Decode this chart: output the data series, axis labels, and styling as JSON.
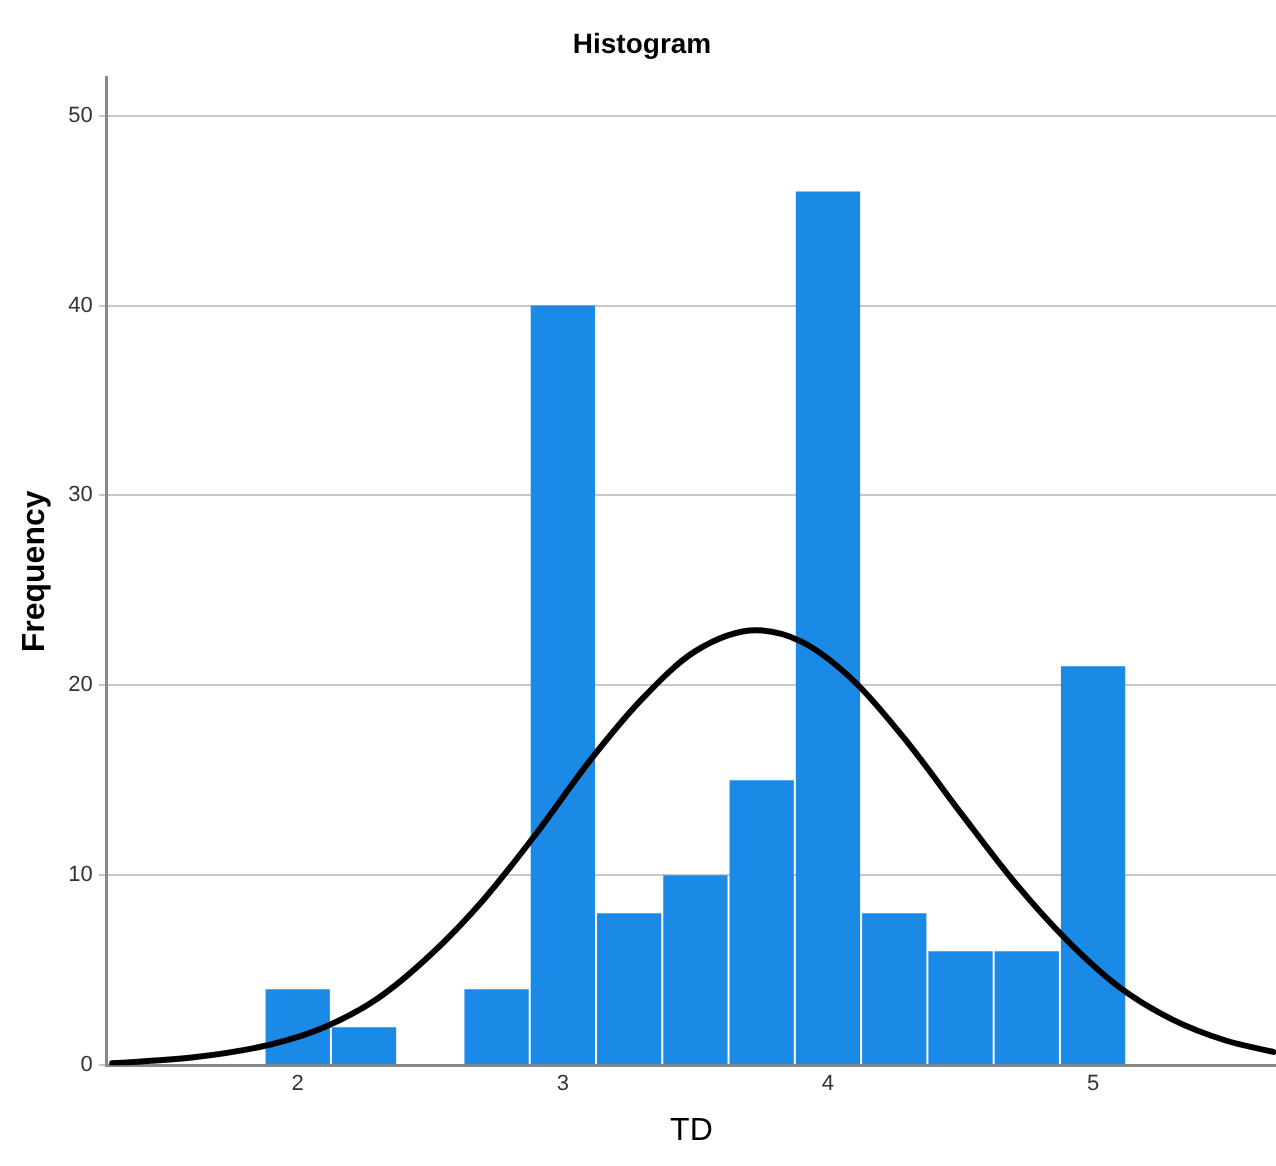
{
  "chart_data": {
    "type": "histogram",
    "title": "Histogram",
    "xlabel": "TD",
    "ylabel": "Frequency",
    "bins": [
      1.875,
      2.125,
      2.375,
      2.625,
      2.875,
      3.125,
      3.375,
      3.625,
      3.875,
      4.125,
      4.375,
      4.625,
      4.875,
      5.125
    ],
    "values": [
      4,
      2,
      0,
      4,
      40,
      8,
      10,
      15,
      46,
      8,
      6,
      6,
      21
    ],
    "color": "#1a8ae6",
    "series": [
      {
        "type": "line",
        "color": "#000000",
        "marker": "none",
        "x": [
          1.3,
          1.6,
          1.9,
          2.1,
          2.3,
          2.5,
          2.7,
          2.9,
          3.1,
          3.3,
          3.5,
          3.73,
          3.9,
          4.1,
          4.3,
          4.5,
          4.7,
          4.9,
          5.1,
          5.3,
          5.5,
          5.68
        ],
        "values": [
          0.1,
          0.4,
          1.1,
          2.0,
          3.5,
          5.8,
          8.7,
          12.2,
          16.0,
          19.3,
          21.8,
          22.9,
          22.3,
          20.2,
          17.0,
          13.3,
          9.7,
          6.6,
          4.1,
          2.4,
          1.3,
          0.7
        ]
      }
    ],
    "xlim": [
      1.28,
      5.69
    ],
    "xticks": [
      2,
      3,
      4,
      5
    ],
    "ylim": [
      0,
      52
    ],
    "yticks": [
      0,
      10,
      20,
      30,
      40,
      50
    ],
    "grid": "y",
    "legend": false
  }
}
